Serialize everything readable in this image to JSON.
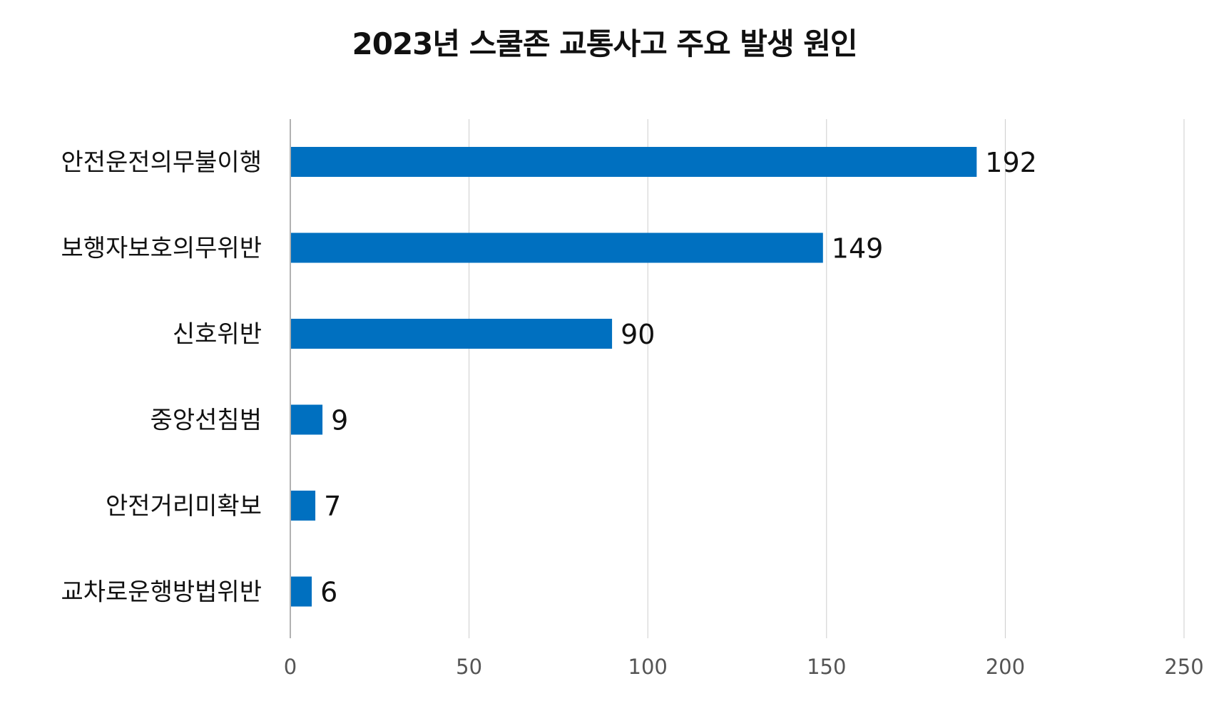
{
  "chart_data": {
    "type": "bar",
    "orientation": "horizontal",
    "title": "2023년 스쿨존 교통사고 주요 발생 원인",
    "categories": [
      "안전운전의무불이행",
      "보행자보호의무위반",
      "신호위반",
      "중앙선침범",
      "안전거리미확보",
      "교차로운행방법위반"
    ],
    "values": [
      192,
      149,
      90,
      9,
      7,
      6
    ],
    "xlim": [
      0,
      250
    ],
    "xticks": [
      0,
      50,
      100,
      150,
      200,
      250
    ],
    "grid": true,
    "data_labels": true,
    "bar_color": "#0070C0",
    "grid_color": "#cccccc",
    "axis_color": "#999999"
  }
}
